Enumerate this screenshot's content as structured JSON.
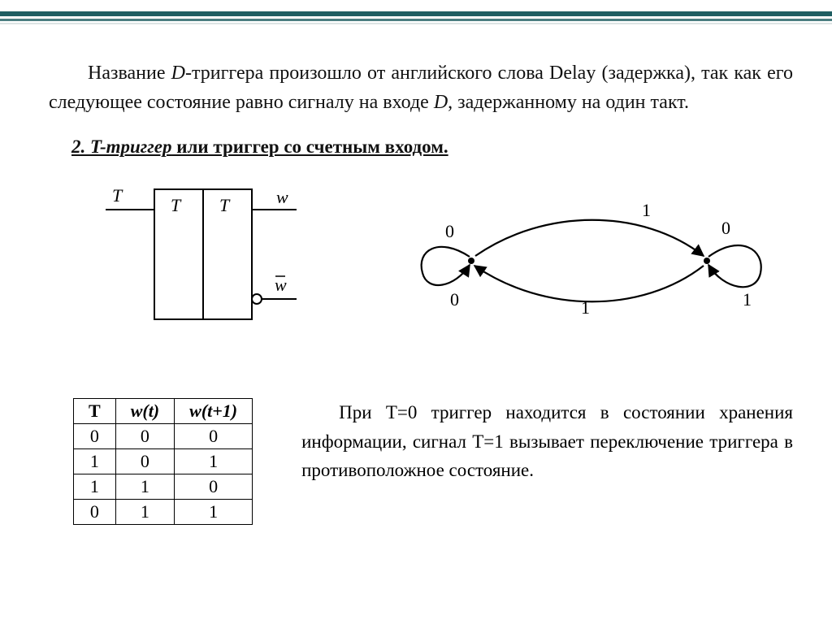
{
  "colors": {
    "rule": "#1f5e62",
    "text": "#111111",
    "bg": "#ffffff",
    "tableBorder": "#000000"
  },
  "para1_pre": "Название ",
  "para1_D": "D",
  "para1_mid1": "-триггера произошло от английского слова Delay (задержка), так как его следующее состояние равно сигналу на входе ",
  "para1_D2": "D",
  "para1_post": ", задержанному на один такт.",
  "heading_lead": "2. T-триггер",
  "heading_rest": " или триггер со счетным входом.",
  "schematic": {
    "input_label": "T",
    "inner_left": "T",
    "inner_right": "T",
    "out_top": "w",
    "out_bot": "w̄"
  },
  "state": {
    "left_label": "0",
    "right_label": "0",
    "self_left": "0",
    "self_right": "1",
    "edge_top": "1",
    "edge_bottom": "1"
  },
  "truth_table": {
    "columns": [
      "T",
      "w(t)",
      "w(t+1)"
    ],
    "rows": [
      [
        "0",
        "0",
        "0"
      ],
      [
        "1",
        "0",
        "1"
      ],
      [
        "1",
        "1",
        "0"
      ],
      [
        "0",
        "1",
        "1"
      ]
    ]
  },
  "para2": "При T=0 триггер находится в состоянии хранения информации, сигнал T=1 вызывает переключение триггера в противоположное состояние."
}
